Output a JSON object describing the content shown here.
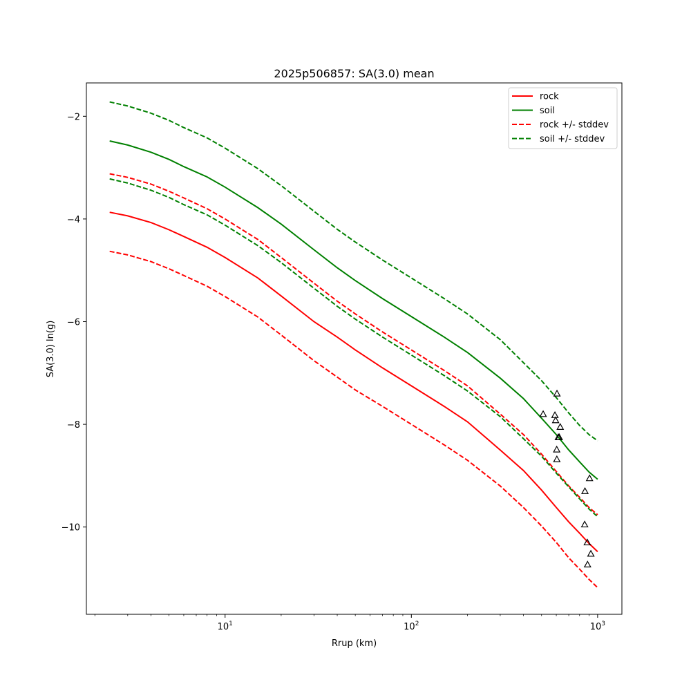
{
  "chart_data": {
    "type": "line",
    "title": "2025p506857: SA(3.0) mean",
    "xlabel": "Rrup (km)",
    "ylabel": "SA(3.0) ln(g)",
    "x_scale": "log",
    "xlim": [
      1.8,
      1350
    ],
    "ylim": [
      -11.7,
      -1.35
    ],
    "grid": false,
    "legend_position": "top-right",
    "x_ticks": [
      {
        "value": 10,
        "base": "10",
        "exp": "1"
      },
      {
        "value": 100,
        "base": "10",
        "exp": "2"
      },
      {
        "value": 1000,
        "base": "10",
        "exp": "3"
      }
    ],
    "y_ticks": [
      -10,
      -8,
      -6,
      -4,
      -2
    ],
    "y_tick_labels": [
      "−10",
      "−8",
      "−6",
      "−4",
      "−2"
    ],
    "colors": {
      "rock": "#ff0000",
      "soil": "#008000"
    },
    "x": [
      2.4,
      3,
      4,
      5,
      6,
      8,
      10,
      15,
      20,
      30,
      40,
      50,
      70,
      100,
      150,
      200,
      300,
      400,
      500,
      600,
      700,
      800,
      900,
      1000
    ],
    "series": [
      {
        "name": "rock",
        "style": "solid",
        "color": "#ff0000",
        "values": [
          -3.87,
          -3.94,
          -4.07,
          -4.21,
          -4.34,
          -4.55,
          -4.75,
          -5.15,
          -5.5,
          -6.0,
          -6.3,
          -6.55,
          -6.9,
          -7.25,
          -7.65,
          -7.95,
          -8.5,
          -8.9,
          -9.28,
          -9.62,
          -9.9,
          -10.12,
          -10.32,
          -10.48
        ]
      },
      {
        "name": "soil",
        "style": "solid",
        "color": "#008000",
        "values": [
          -2.48,
          -2.56,
          -2.7,
          -2.84,
          -2.98,
          -3.18,
          -3.38,
          -3.78,
          -4.1,
          -4.6,
          -4.95,
          -5.2,
          -5.55,
          -5.9,
          -6.3,
          -6.6,
          -7.1,
          -7.5,
          -7.88,
          -8.2,
          -8.5,
          -8.73,
          -8.93,
          -9.07
        ]
      },
      {
        "name": "rock +/- stddev",
        "style": "dashed",
        "color": "#ff0000",
        "values": [
          -3.12,
          -3.19,
          -3.32,
          -3.46,
          -3.59,
          -3.8,
          -4.0,
          -4.4,
          -4.75,
          -5.25,
          -5.6,
          -5.85,
          -6.2,
          -6.55,
          -6.95,
          -7.25,
          -7.8,
          -8.2,
          -8.58,
          -8.92,
          -9.2,
          -9.42,
          -9.62,
          -9.76
        ]
      },
      {
        "name": "",
        "style": "dashed",
        "color": "#ff0000",
        "values": [
          -4.63,
          -4.7,
          -4.83,
          -4.97,
          -5.1,
          -5.31,
          -5.51,
          -5.91,
          -6.26,
          -6.76,
          -7.08,
          -7.33,
          -7.65,
          -8.0,
          -8.4,
          -8.7,
          -9.2,
          -9.62,
          -9.98,
          -10.3,
          -10.6,
          -10.82,
          -11.02,
          -11.18
        ]
      },
      {
        "name": "soil +/- stddev",
        "style": "dashed",
        "color": "#008000",
        "values": [
          -1.72,
          -1.8,
          -1.94,
          -2.08,
          -2.22,
          -2.42,
          -2.62,
          -3.02,
          -3.35,
          -3.85,
          -4.2,
          -4.45,
          -4.8,
          -5.15,
          -5.55,
          -5.85,
          -6.35,
          -6.8,
          -7.15,
          -7.48,
          -7.78,
          -8.02,
          -8.2,
          -8.32
        ]
      },
      {
        "name": "",
        "style": "dashed",
        "color": "#008000",
        "values": [
          -3.22,
          -3.3,
          -3.44,
          -3.58,
          -3.72,
          -3.92,
          -4.12,
          -4.52,
          -4.85,
          -5.35,
          -5.7,
          -5.95,
          -6.3,
          -6.65,
          -7.05,
          -7.35,
          -7.85,
          -8.28,
          -8.62,
          -8.95,
          -9.22,
          -9.45,
          -9.65,
          -9.8
        ]
      }
    ],
    "observations": {
      "marker": "triangle",
      "points": [
        {
          "x": 510,
          "y": -7.8
        },
        {
          "x": 605,
          "y": -7.4
        },
        {
          "x": 590,
          "y": -7.82
        },
        {
          "x": 595,
          "y": -7.92
        },
        {
          "x": 630,
          "y": -8.05
        },
        {
          "x": 615,
          "y": -8.25
        },
        {
          "x": 622,
          "y": -8.25
        },
        {
          "x": 603,
          "y": -8.49
        },
        {
          "x": 604,
          "y": -8.68
        },
        {
          "x": 905,
          "y": -9.05
        },
        {
          "x": 855,
          "y": -9.3
        },
        {
          "x": 852,
          "y": -9.95
        },
        {
          "x": 880,
          "y": -10.3
        },
        {
          "x": 920,
          "y": -10.52
        },
        {
          "x": 883,
          "y": -10.73
        }
      ]
    }
  }
}
